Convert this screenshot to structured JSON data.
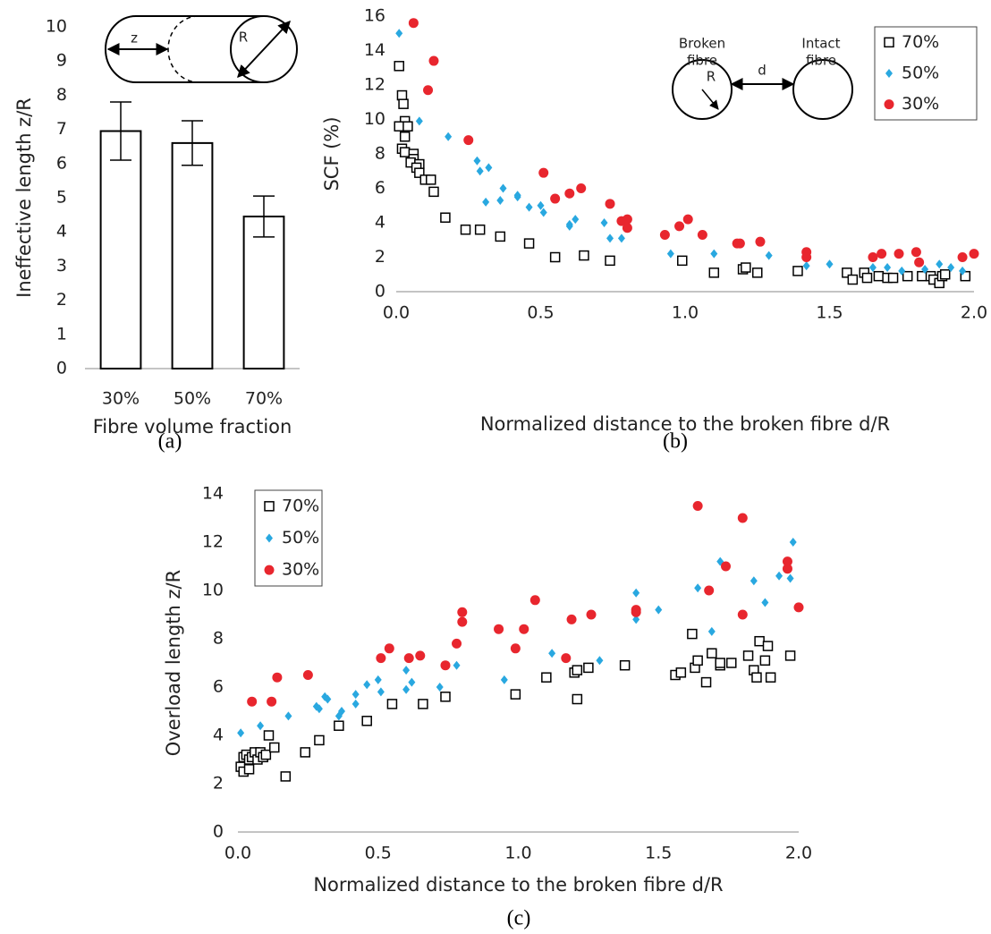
{
  "chart_data": [
    {
      "type": "bar",
      "panel_label": "(a)",
      "x_label": "Fibre volume fraction",
      "y_label": "Ineffective length z/R",
      "categories": [
        "30%",
        "50%",
        "70%"
      ],
      "values": [
        6.95,
        6.6,
        4.45
      ],
      "errors": [
        0.85,
        0.65,
        0.6
      ],
      "color": "#ffffff",
      "edge_color": "#000000",
      "ylim": [
        0,
        10
      ],
      "yticks": [
        0,
        1,
        2,
        3,
        4,
        5,
        6,
        7,
        8,
        9,
        10
      ],
      "grid": false,
      "inset_labels": [
        "z",
        "R"
      ]
    },
    {
      "type": "scatter",
      "panel_label": "(b)",
      "x_label": "Normalized distance to the broken fibre d/R",
      "y_label": "SCF (%)",
      "xlim": [
        0,
        2
      ],
      "xticks": [
        {
          "value": 0,
          "label": "0.0"
        },
        0.5,
        {
          "value": 1,
          "label": "1.0"
        },
        1.5,
        {
          "value": 2,
          "label": "2.0"
        }
      ],
      "ylim": [
        0,
        16
      ],
      "yticks": [
        0,
        2,
        4,
        6,
        8,
        10,
        12,
        14,
        16
      ],
      "grid": false,
      "legend": "top-right",
      "inset_labels": [
        "Broken",
        "fibre",
        "Intact",
        "fibre",
        "d",
        "R"
      ],
      "series": [
        {
          "name": "70%",
          "color": "#000000",
          "marker": "square",
          "x": [
            0.01,
            0.02,
            0.025,
            0.03,
            0.01,
            0.04,
            0.03,
            0.02,
            0.03,
            0.06,
            0.06,
            0.05,
            0.08,
            0.07,
            0.08,
            0.1,
            0.12,
            0.13,
            0.17,
            0.24,
            0.29,
            0.36,
            0.46,
            0.55,
            0.65,
            0.74,
            0.99,
            1.1,
            1.2,
            1.21,
            1.25,
            1.39,
            1.56,
            1.58,
            1.62,
            1.63,
            1.67,
            1.7,
            1.72,
            1.77,
            1.82,
            1.85,
            1.86,
            1.88,
            1.89,
            1.9,
            1.97
          ],
          "values": [
            13.1,
            11.4,
            10.9,
            9.9,
            9.6,
            9.6,
            9.0,
            8.3,
            8.1,
            8.0,
            7.7,
            7.5,
            7.4,
            7.2,
            6.9,
            6.5,
            6.5,
            5.8,
            4.3,
            3.6,
            3.6,
            3.2,
            2.8,
            2.0,
            2.1,
            1.8,
            1.8,
            1.1,
            1.3,
            1.4,
            1.1,
            1.2,
            1.1,
            0.7,
            1.1,
            0.8,
            0.9,
            0.8,
            0.8,
            0.9,
            0.9,
            0.9,
            0.7,
            0.5,
            0.9,
            1.0,
            0.9
          ]
        },
        {
          "name": "50%",
          "color": "#29a8e0",
          "marker": "diamond",
          "x": [
            0.01,
            0.08,
            0.18,
            0.28,
            0.29,
            0.32,
            0.31,
            0.36,
            0.37,
            0.42,
            0.42,
            0.46,
            0.5,
            0.51,
            0.6,
            0.6,
            0.62,
            0.72,
            0.74,
            0.78,
            0.95,
            1.1,
            1.29,
            1.42,
            1.5,
            1.65,
            1.7,
            1.75,
            1.83,
            1.88,
            1.92,
            1.96
          ],
          "values": [
            15.0,
            9.9,
            9.0,
            7.6,
            7.0,
            7.2,
            5.2,
            5.3,
            6.0,
            5.5,
            5.6,
            4.9,
            5.0,
            4.6,
            3.8,
            3.9,
            4.2,
            4.0,
            3.1,
            3.1,
            2.2,
            2.2,
            2.1,
            1.5,
            1.6,
            1.4,
            1.4,
            1.2,
            1.3,
            1.6,
            1.4,
            1.2
          ]
        },
        {
          "name": "30%",
          "color": "#e8262e",
          "marker": "circle",
          "x": [
            0.06,
            0.11,
            0.13,
            0.25,
            0.51,
            0.55,
            0.6,
            0.64,
            0.74,
            0.78,
            0.8,
            0.8,
            0.93,
            0.98,
            1.01,
            1.06,
            1.18,
            1.19,
            1.26,
            1.42,
            1.42,
            1.65,
            1.68,
            1.74,
            1.8,
            1.81,
            1.96,
            2.0
          ],
          "values": [
            15.6,
            11.7,
            13.4,
            8.8,
            6.9,
            5.4,
            5.7,
            6.0,
            5.1,
            4.1,
            4.2,
            3.7,
            3.3,
            3.8,
            4.2,
            3.3,
            2.8,
            2.8,
            2.9,
            2.3,
            2.0,
            2.0,
            2.2,
            2.2,
            2.3,
            1.7,
            2.0,
            2.2
          ]
        }
      ]
    },
    {
      "type": "scatter",
      "panel_label": "(c)",
      "x_label": "Normalized distance to the broken fibre d/R",
      "y_label": "Overload length z/R",
      "xlim": [
        0,
        2
      ],
      "xticks": [
        {
          "value": 0,
          "label": "0.0"
        },
        0.5,
        {
          "value": 1,
          "label": "1.0"
        },
        1.5,
        {
          "value": 2,
          "label": "2.0"
        }
      ],
      "ylim": [
        0,
        14
      ],
      "yticks": [
        0,
        2,
        4,
        6,
        8,
        10,
        12,
        14
      ],
      "grid": false,
      "legend": "top-left",
      "series": [
        {
          "name": "70%",
          "color": "#000000",
          "marker": "square",
          "x": [
            0.01,
            0.02,
            0.02,
            0.03,
            0.04,
            0.04,
            0.05,
            0.06,
            0.07,
            0.08,
            0.09,
            0.1,
            0.11,
            0.13,
            0.17,
            0.24,
            0.29,
            0.36,
            0.46,
            0.55,
            0.66,
            0.74,
            0.99,
            1.1,
            1.2,
            1.21,
            1.21,
            1.25,
            1.38,
            1.56,
            1.58,
            1.62,
            1.63,
            1.64,
            1.67,
            1.69,
            1.72,
            1.72,
            1.76,
            1.82,
            1.84,
            1.85,
            1.86,
            1.88,
            1.89,
            1.9,
            1.97
          ],
          "values": [
            2.7,
            2.5,
            3.1,
            3.2,
            2.6,
            3.0,
            3.1,
            3.3,
            3.0,
            3.3,
            3.1,
            3.2,
            4.0,
            3.5,
            2.3,
            3.3,
            3.8,
            4.4,
            4.6,
            5.3,
            5.3,
            5.6,
            5.7,
            6.4,
            6.6,
            6.7,
            5.5,
            6.8,
            6.9,
            6.5,
            6.6,
            8.2,
            6.8,
            7.1,
            6.2,
            7.4,
            6.9,
            7.0,
            7.0,
            7.3,
            6.7,
            6.4,
            7.9,
            7.1,
            7.7,
            6.4,
            7.3
          ]
        },
        {
          "name": "50%",
          "color": "#29a8e0",
          "marker": "diamond",
          "x": [
            0.01,
            0.08,
            0.18,
            0.28,
            0.29,
            0.31,
            0.32,
            0.36,
            0.37,
            0.42,
            0.42,
            0.46,
            0.5,
            0.51,
            0.6,
            0.6,
            0.62,
            0.72,
            0.78,
            0.95,
            1.12,
            1.29,
            1.42,
            1.42,
            1.5,
            1.64,
            1.69,
            1.72,
            1.84,
            1.88,
            1.93,
            1.97,
            1.98
          ],
          "values": [
            4.1,
            4.4,
            4.8,
            5.2,
            5.1,
            5.6,
            5.5,
            4.8,
            5.0,
            5.7,
            5.3,
            6.1,
            6.3,
            5.8,
            6.7,
            5.9,
            6.2,
            6.0,
            6.9,
            6.3,
            7.4,
            7.1,
            9.9,
            8.8,
            9.2,
            10.1,
            8.3,
            11.2,
            10.4,
            9.5,
            10.6,
            10.5,
            12.0
          ]
        },
        {
          "name": "30%",
          "color": "#e8262e",
          "marker": "circle",
          "x": [
            0.05,
            0.12,
            0.14,
            0.25,
            0.51,
            0.54,
            0.61,
            0.65,
            0.74,
            0.78,
            0.8,
            0.8,
            0.93,
            0.99,
            1.02,
            1.06,
            1.17,
            1.19,
            1.26,
            1.42,
            1.42,
            1.64,
            1.68,
            1.74,
            1.8,
            1.8,
            1.96,
            1.96,
            2.0
          ],
          "values": [
            5.4,
            5.4,
            6.4,
            6.5,
            7.2,
            7.6,
            7.2,
            7.3,
            6.9,
            7.8,
            8.7,
            9.1,
            8.4,
            7.6,
            8.4,
            9.6,
            7.2,
            8.8,
            9.0,
            9.1,
            9.2,
            13.5,
            10.0,
            11.0,
            9.0,
            13.0,
            11.2,
            10.9,
            9.3
          ]
        }
      ]
    }
  ]
}
